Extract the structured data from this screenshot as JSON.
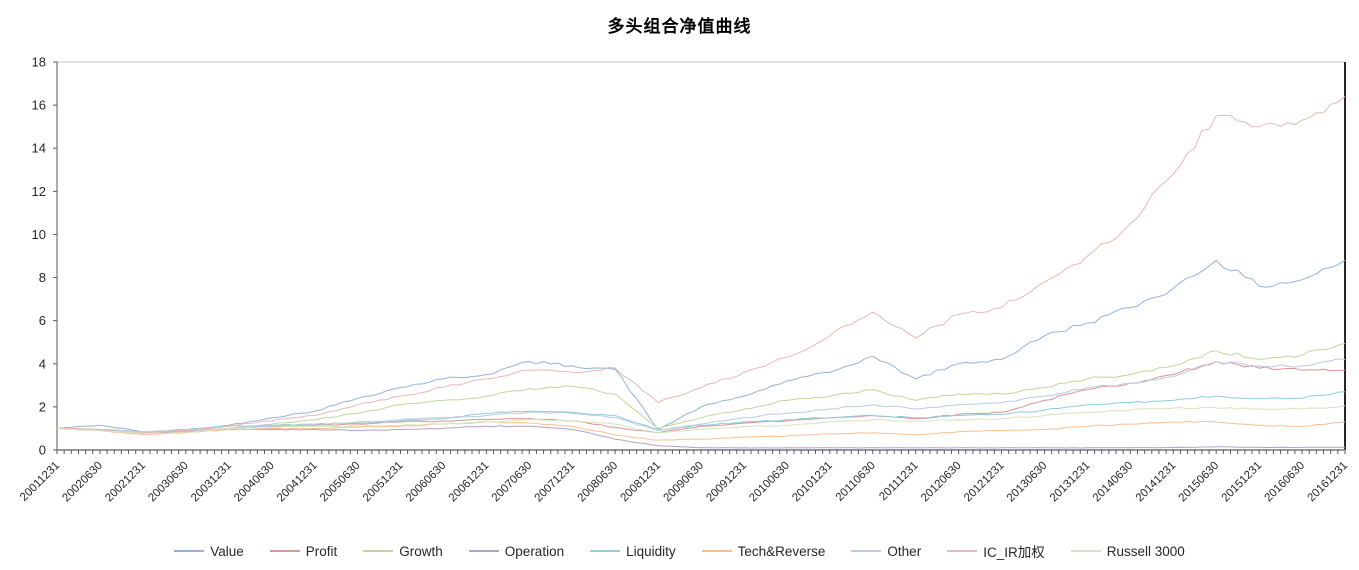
{
  "title": "多头组合净值曲线",
  "chart_data": {
    "type": "line",
    "title": "多头组合净值曲线",
    "xlabel": "",
    "ylabel": "",
    "ylim": [
      0,
      18
    ],
    "y_tick_step": 2,
    "grid": false,
    "legend_position": "bottom",
    "x_minor_ticks_per_interval": 6,
    "x_categories": [
      "20011231",
      "20020630",
      "20021231",
      "20030630",
      "20031231",
      "20040630",
      "20041231",
      "20050630",
      "20051231",
      "20060630",
      "20061231",
      "20070630",
      "20071231",
      "20080630",
      "20081231",
      "20090630",
      "20091231",
      "20100630",
      "20101231",
      "20110630",
      "20111231",
      "20120630",
      "20121231",
      "20130630",
      "20131231",
      "20140630",
      "20141231",
      "20150630",
      "20151231",
      "20160630",
      "20161231"
    ],
    "series": [
      {
        "name": "Value",
        "color": "#95B3D7",
        "values": [
          1.0,
          1.15,
          0.85,
          0.9,
          1.15,
          1.5,
          1.8,
          2.4,
          2.9,
          3.3,
          3.5,
          4.1,
          3.9,
          3.75,
          0.95,
          2.0,
          2.5,
          3.2,
          3.6,
          4.35,
          3.3,
          4.0,
          4.2,
          5.3,
          5.9,
          6.6,
          7.5,
          8.8,
          7.6,
          7.9,
          8.8
        ]
      },
      {
        "name": "Profit",
        "color": "#D99694",
        "values": [
          1.0,
          0.95,
          0.78,
          0.85,
          1.0,
          1.1,
          1.15,
          1.2,
          1.3,
          1.35,
          1.4,
          1.45,
          1.35,
          1.05,
          0.8,
          1.1,
          1.25,
          1.35,
          1.5,
          1.6,
          1.45,
          1.65,
          1.75,
          2.3,
          2.8,
          3.1,
          3.5,
          4.1,
          3.8,
          3.7,
          3.7
        ]
      },
      {
        "name": "Growth",
        "color": "#C3D69B",
        "values": [
          1.0,
          0.95,
          0.8,
          0.85,
          1.0,
          1.2,
          1.4,
          1.7,
          2.1,
          2.3,
          2.5,
          2.85,
          2.95,
          2.6,
          1.0,
          1.5,
          1.9,
          2.3,
          2.5,
          2.8,
          2.3,
          2.6,
          2.6,
          2.9,
          3.3,
          3.5,
          3.9,
          4.6,
          4.2,
          4.4,
          4.95
        ]
      },
      {
        "name": "Operation",
        "color": "#B2A1C7",
        "values": [
          1.0,
          0.92,
          0.8,
          0.85,
          0.95,
          0.95,
          0.95,
          0.9,
          0.95,
          1.0,
          1.1,
          1.1,
          0.95,
          0.5,
          0.2,
          0.1,
          0.1,
          0.1,
          0.1,
          0.1,
          0.1,
          0.1,
          0.1,
          0.1,
          0.1,
          0.1,
          0.12,
          0.15,
          0.12,
          0.12,
          0.13
        ]
      },
      {
        "name": "Liquidity",
        "color": "#92CDDC",
        "values": [
          1.0,
          0.95,
          0.82,
          0.95,
          1.1,
          1.15,
          1.2,
          1.25,
          1.35,
          1.45,
          1.7,
          1.8,
          1.75,
          1.6,
          0.95,
          1.15,
          1.3,
          1.4,
          1.5,
          1.6,
          1.5,
          1.6,
          1.65,
          1.85,
          2.1,
          2.2,
          2.3,
          2.5,
          2.4,
          2.4,
          2.7
        ]
      },
      {
        "name": "Tech&Reverse",
        "color": "#FAC090",
        "values": [
          1.0,
          0.9,
          0.72,
          0.8,
          0.95,
          1.0,
          1.0,
          1.05,
          1.1,
          1.2,
          1.3,
          1.25,
          1.1,
          0.7,
          0.45,
          0.5,
          0.6,
          0.65,
          0.75,
          0.8,
          0.7,
          0.85,
          0.9,
          0.95,
          1.1,
          1.2,
          1.3,
          1.3,
          1.15,
          1.1,
          1.3
        ]
      },
      {
        "name": "Other",
        "color": "#B8CCE4",
        "values": [
          1.0,
          0.95,
          0.85,
          0.9,
          1.0,
          1.1,
          1.2,
          1.3,
          1.4,
          1.5,
          1.6,
          1.75,
          1.7,
          1.5,
          0.9,
          1.2,
          1.5,
          1.7,
          1.9,
          2.1,
          1.9,
          2.1,
          2.2,
          2.5,
          2.9,
          3.1,
          3.4,
          4.1,
          3.9,
          3.9,
          4.2
        ]
      },
      {
        "name": "IC_IR加权",
        "color": "#E6B9B8",
        "values": [
          1.0,
          0.95,
          0.8,
          0.9,
          1.1,
          1.35,
          1.6,
          2.1,
          2.5,
          2.9,
          3.3,
          3.7,
          3.6,
          3.8,
          2.2,
          2.9,
          3.6,
          4.3,
          5.3,
          6.4,
          5.2,
          6.3,
          6.6,
          7.8,
          9.0,
          10.5,
          12.8,
          15.5,
          15.0,
          15.3,
          16.4
        ]
      },
      {
        "name": "Russell 3000",
        "color": "#D6E3BC",
        "values": [
          1.0,
          0.9,
          0.78,
          0.82,
          1.0,
          1.05,
          1.1,
          1.1,
          1.15,
          1.2,
          1.3,
          1.4,
          1.35,
          1.2,
          0.8,
          0.95,
          1.1,
          1.15,
          1.3,
          1.4,
          1.35,
          1.4,
          1.45,
          1.6,
          1.75,
          1.85,
          1.95,
          1.95,
          1.9,
          1.9,
          2.05
        ]
      }
    ]
  }
}
